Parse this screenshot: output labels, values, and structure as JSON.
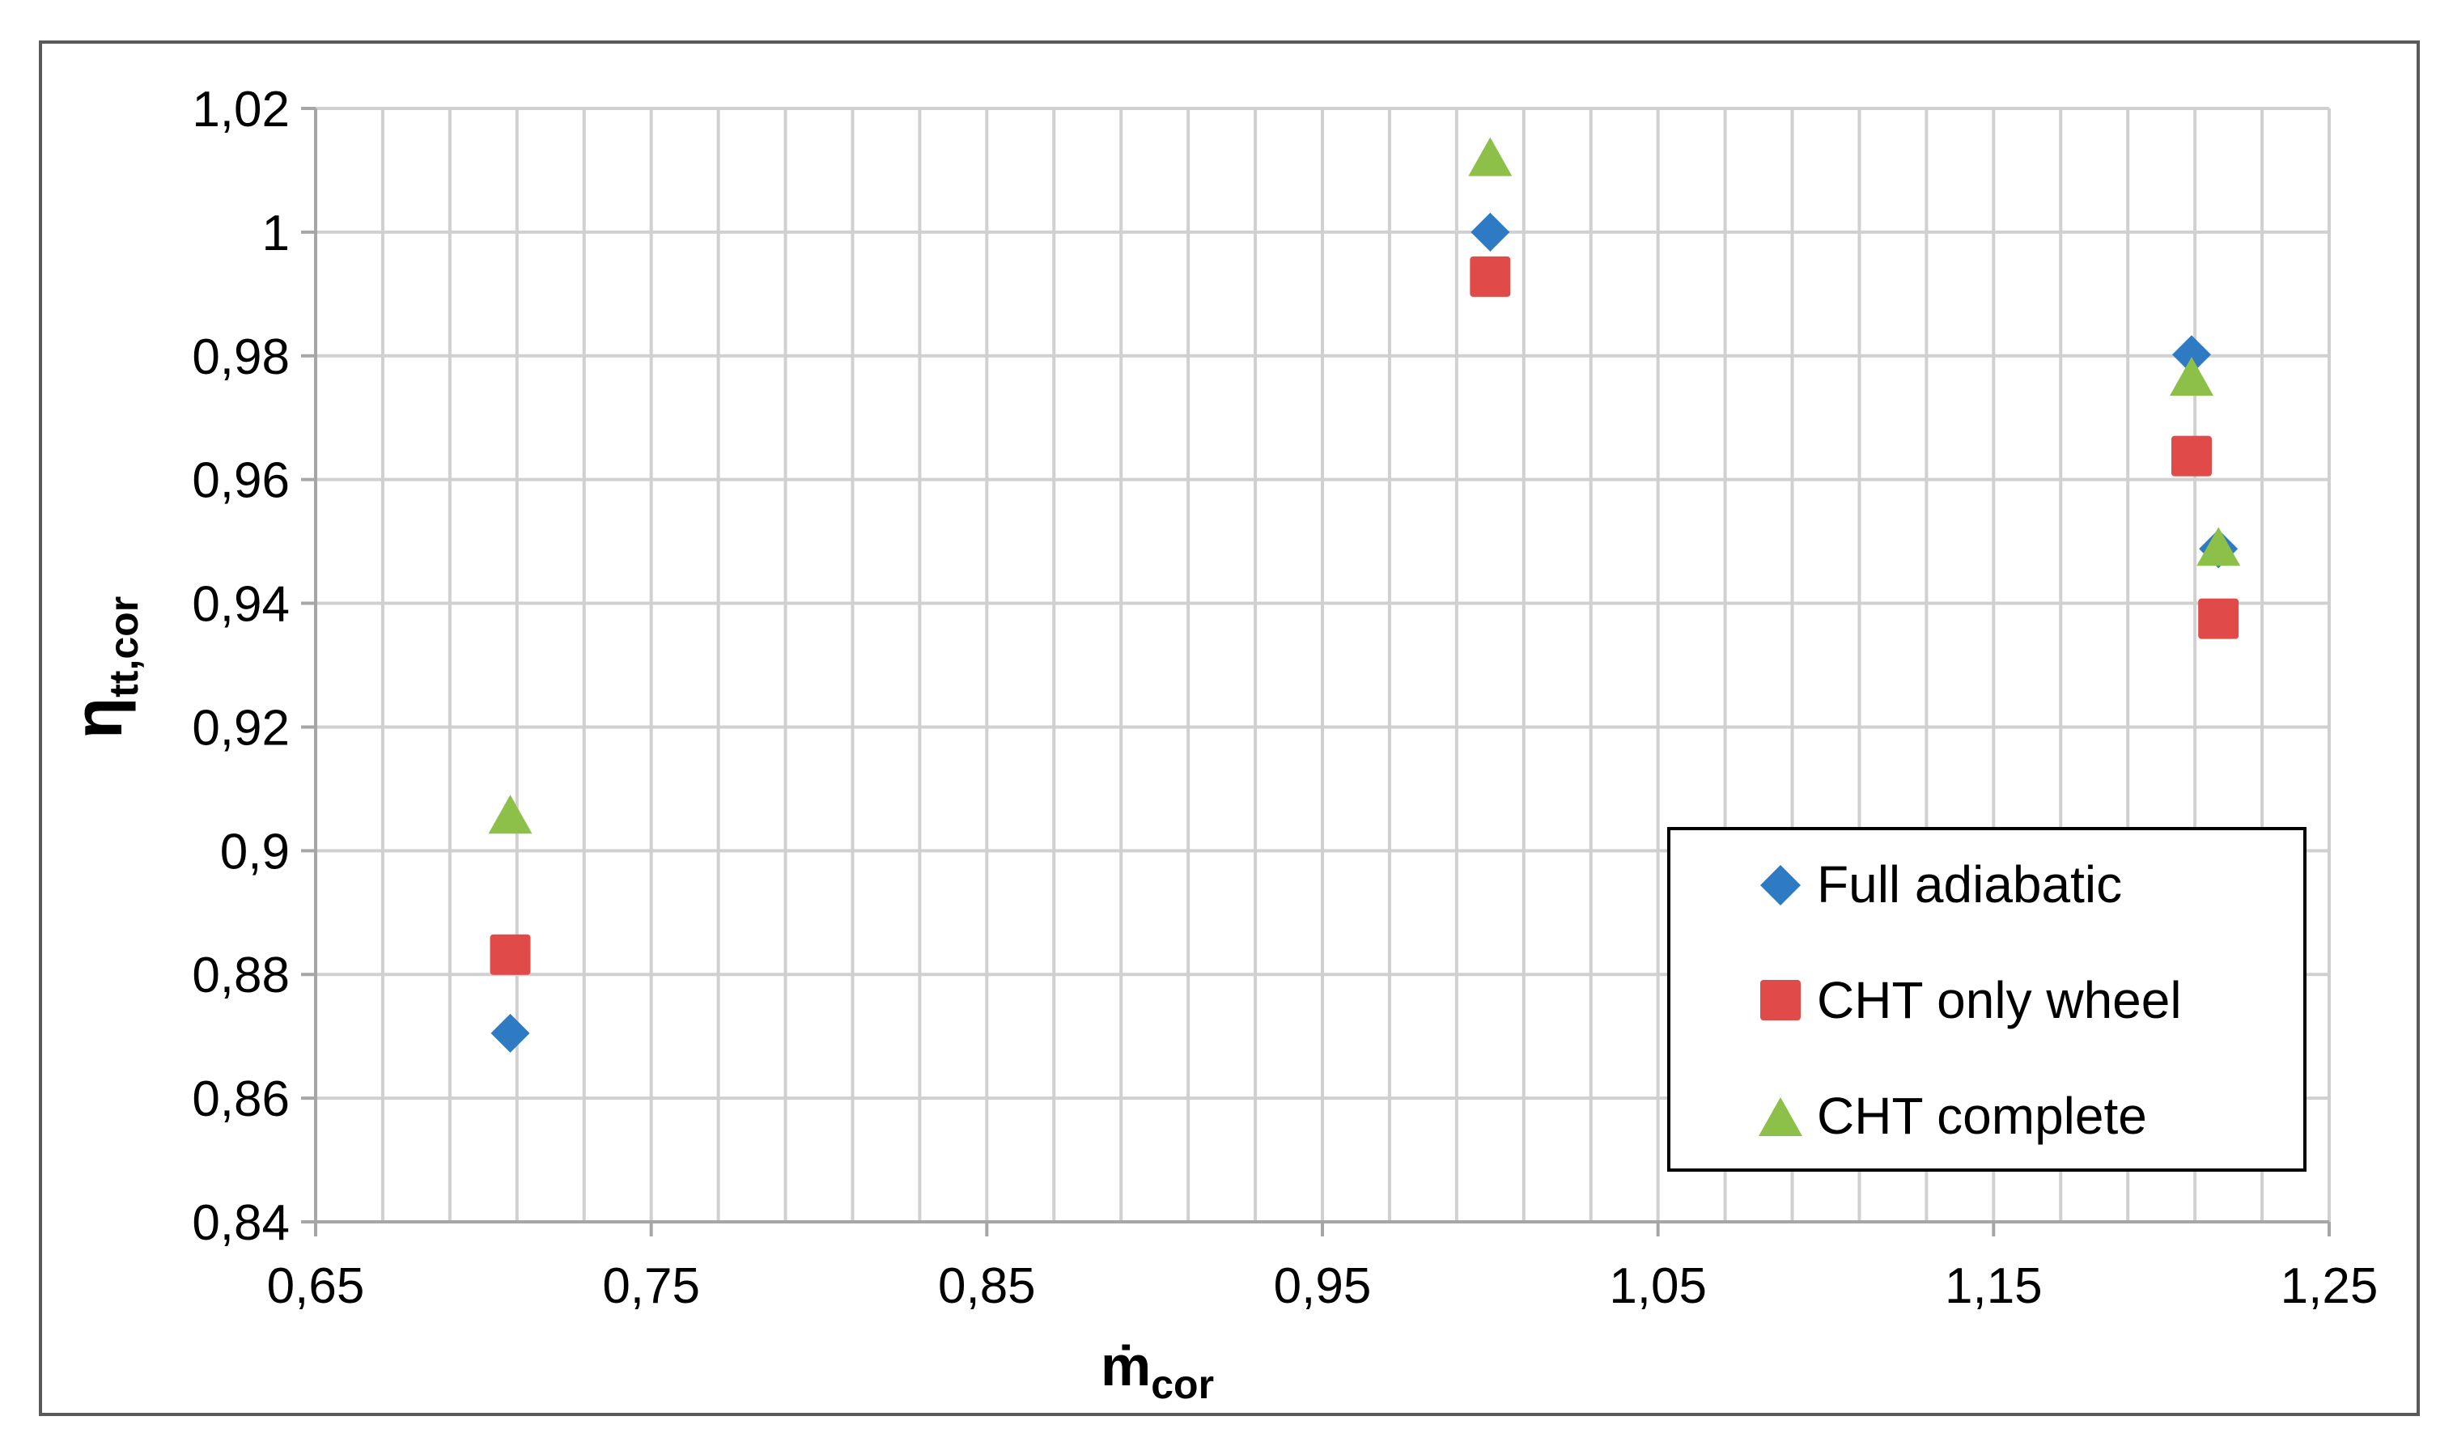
{
  "chart_data": {
    "type": "scatter",
    "title": "",
    "xlabel": {
      "main": "ṁ",
      "sub": "cor"
    },
    "ylabel": {
      "main": "η",
      "sub": "tt,cor"
    },
    "xlim": [
      0.65,
      1.25
    ],
    "ylim": [
      0.84,
      1.02
    ],
    "x_ticks": [
      0.65,
      0.75,
      0.85,
      0.95,
      1.05,
      1.15,
      1.25
    ],
    "x_tick_labels": [
      "0,65",
      "0,75",
      "0,85",
      "0,95",
      "1,05",
      "1,15",
      "1,25"
    ],
    "y_ticks": [
      0.84,
      0.86,
      0.88,
      0.9,
      0.92,
      0.94,
      0.96,
      0.98,
      1.0,
      1.02
    ],
    "y_tick_labels": [
      "0,84",
      "0,86",
      "0,88",
      "0,9",
      "0,92",
      "0,94",
      "0,96",
      "0,98",
      "1",
      "1,02"
    ],
    "x_minor_step": 0.02,
    "grid": true,
    "legend_position": "bottom-right",
    "series": [
      {
        "name": "Full adiabatic",
        "marker": "diamond",
        "color": "#2E7BC4",
        "x": [
          0.708,
          1.0,
          1.209,
          1.217
        ],
        "y": [
          0.8705,
          1.0,
          0.9802,
          0.9488
        ]
      },
      {
        "name": "CHT only wheel",
        "marker": "square",
        "color": "#E04B4A",
        "x": [
          0.708,
          1.0,
          1.209,
          1.217
        ],
        "y": [
          0.8832,
          0.9928,
          0.9638,
          0.9375
        ]
      },
      {
        "name": "CHT complete",
        "marker": "triangle",
        "color": "#8DC048",
        "x": [
          0.708,
          1.0,
          1.209,
          1.217
        ],
        "y": [
          0.9055,
          1.0118,
          0.9763,
          0.9488
        ]
      }
    ]
  }
}
